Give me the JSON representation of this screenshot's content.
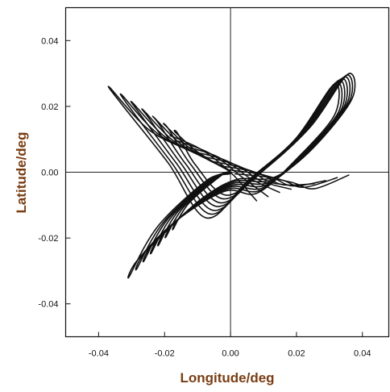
{
  "chart_data": {
    "type": "line",
    "title": "",
    "xlabel": "Longitude/deg",
    "ylabel": "Latitude/deg",
    "xlim": [
      -0.05,
      0.048
    ],
    "ylim": [
      -0.05,
      0.05
    ],
    "x_ticks": [
      -0.04,
      -0.02,
      0.0,
      0.02,
      0.04
    ],
    "y_ticks": [
      -0.04,
      -0.02,
      0.0,
      0.02,
      0.04
    ],
    "x_tick_labels": [
      "-0.04",
      "-0.02",
      "0.00",
      "0.02",
      "0.04"
    ],
    "y_tick_labels": [
      "-0.04",
      "-0.02",
      "0.00",
      "0.02",
      "0.04"
    ],
    "grid": false,
    "zero_lines": true,
    "line_color": "#111111",
    "series": [
      {
        "x": [
          0.0,
          -0.0099,
          -0.0245,
          -0.0367,
          -0.0325,
          -0.0189,
          -0.0073,
          0.0054,
          0.0196,
          0.0314,
          0.0316,
          0.0201,
          0.0082,
          -0.0018,
          -0.0169,
          -0.0283,
          -0.0307,
          -0.0221,
          -0.0071,
          0.0
        ],
        "y": [
          0.0,
          0.0054,
          0.0127,
          0.0258,
          0.02,
          0.0028,
          -0.0139,
          -0.0024,
          0.01,
          0.0267,
          0.0175,
          0.0041,
          -0.0063,
          -0.0058,
          -0.0151,
          -0.0268,
          -0.0317,
          -0.0165,
          -0.0024,
          0.0
        ]
      },
      {
        "x": [
          0.0,
          -0.0089,
          -0.0221,
          -0.033,
          -0.0298,
          -0.0178,
          -0.0062,
          0.0063,
          0.0204,
          0.0319,
          0.0327,
          0.0208,
          0.0091,
          -0.0012,
          -0.0153,
          -0.0262,
          -0.0284,
          -0.0205,
          -0.0063,
          0.0
        ],
        "y": [
          0.0,
          0.0049,
          0.0117,
          0.0235,
          0.0186,
          0.0028,
          -0.0127,
          -0.0018,
          0.0106,
          0.0272,
          0.0182,
          0.0046,
          -0.0055,
          -0.0052,
          -0.0138,
          -0.0247,
          -0.0293,
          -0.0154,
          -0.0021,
          0.0
        ]
      },
      {
        "x": [
          0.0,
          -0.0078,
          -0.0197,
          -0.0298,
          -0.0271,
          -0.0164,
          -0.0052,
          0.0072,
          0.0212,
          0.0326,
          0.0336,
          0.0216,
          0.0099,
          -0.0006,
          -0.0137,
          -0.0241,
          -0.0262,
          -0.019,
          -0.0055,
          0.0
        ],
        "y": [
          0.0,
          0.0044,
          0.0106,
          0.0212,
          0.0172,
          0.0027,
          -0.0116,
          -0.0012,
          0.0113,
          0.0278,
          0.019,
          0.0051,
          -0.0047,
          -0.0046,
          -0.0124,
          -0.0226,
          -0.0269,
          -0.0142,
          -0.0018,
          0.0
        ]
      },
      {
        "x": [
          0.0,
          -0.0068,
          -0.0174,
          -0.0265,
          -0.0243,
          -0.015,
          -0.0042,
          0.0081,
          0.022,
          0.0334,
          0.0344,
          0.0224,
          0.0108,
          0.0001,
          -0.0121,
          -0.022,
          -0.024,
          -0.0174,
          -0.0047,
          0.0
        ],
        "y": [
          0.0,
          0.0038,
          0.0096,
          0.0189,
          0.0158,
          0.0026,
          -0.0104,
          -0.0006,
          0.012,
          0.0283,
          0.0198,
          0.0056,
          -0.0039,
          -0.004,
          -0.0111,
          -0.0205,
          -0.0245,
          -0.013,
          -0.0015,
          0.0
        ]
      },
      {
        "x": [
          0.0,
          -0.0057,
          -0.015,
          -0.0232,
          -0.0215,
          -0.0136,
          -0.0031,
          0.009,
          0.0228,
          0.0342,
          0.0352,
          0.0232,
          0.0117,
          0.0007,
          -0.0105,
          -0.0199,
          -0.0218,
          -0.0158,
          -0.0039,
          0.0
        ],
        "y": [
          0.0,
          0.0033,
          0.0085,
          0.0166,
          0.0144,
          0.0025,
          -0.0093,
          0.0,
          0.0127,
          0.0288,
          0.0206,
          0.0061,
          -0.0031,
          -0.0034,
          -0.0097,
          -0.0184,
          -0.0221,
          -0.0118,
          -0.0012,
          0.0
        ]
      },
      {
        "x": [
          0.0,
          -0.0046,
          -0.0126,
          -0.0199,
          -0.0187,
          -0.0121,
          -0.0021,
          0.0099,
          0.0237,
          0.0349,
          0.036,
          0.024,
          0.0125,
          0.0013,
          -0.0089,
          -0.0178,
          -0.0196,
          -0.0142,
          -0.0031,
          0.0
        ],
        "y": [
          0.0,
          0.0028,
          0.0075,
          0.0143,
          0.013,
          0.0024,
          -0.0081,
          0.0006,
          0.0134,
          0.0293,
          0.0214,
          0.0066,
          -0.0023,
          -0.0028,
          -0.0084,
          -0.0163,
          -0.0197,
          -0.0106,
          -0.0009,
          0.0
        ]
      },
      {
        "x": [
          0.0,
          -0.0036,
          -0.0103,
          -0.0166,
          -0.0159,
          -0.0107,
          -0.0011,
          0.0108,
          0.0245,
          0.0356,
          0.0368,
          0.0248,
          0.0134,
          0.0019,
          -0.0073,
          -0.0157,
          -0.0174,
          -0.0126,
          -0.0023,
          0.0
        ],
        "y": [
          0.0,
          0.0022,
          0.0064,
          0.012,
          0.0116,
          0.0023,
          -0.007,
          0.0012,
          0.0141,
          0.0298,
          0.0222,
          0.0071,
          -0.0015,
          -0.0022,
          -0.007,
          -0.0142,
          -0.0173,
          -0.0094,
          -0.0006,
          0.0
        ]
      }
    ],
    "strand_series": [
      {
        "x": [
          -0.0185,
          -0.0105,
          -0.0045,
          0.001,
          0.008
        ],
        "y": [
          0.0112,
          0.0078,
          0.0038,
          -0.001,
          -0.0088
        ]
      },
      {
        "x": [
          -0.016,
          -0.0078,
          -0.002,
          0.0035,
          0.0115
        ],
        "y": [
          0.0095,
          0.0065,
          0.003,
          -0.0015,
          -0.0075
        ]
      },
      {
        "x": [
          -0.0135,
          -0.005,
          0.001,
          0.0065,
          0.015
        ],
        "y": [
          0.0078,
          0.0052,
          0.0018,
          -0.0022,
          -0.0062
        ]
      },
      {
        "x": [
          -0.011,
          -0.0025,
          0.004,
          0.0095,
          0.0185
        ],
        "y": [
          0.0062,
          0.004,
          0.0008,
          -0.0028,
          -0.0052
        ]
      },
      {
        "x": [
          -0.0085,
          0.0,
          0.007,
          0.0125,
          0.022
        ],
        "y": [
          0.0048,
          0.0028,
          -0.0002,
          -0.0032,
          -0.0042
        ]
      },
      {
        "x": [
          -0.006,
          0.0025,
          0.01,
          0.0158,
          0.0255
        ],
        "y": [
          0.0034,
          0.0016,
          -0.001,
          -0.0038,
          -0.0035
        ]
      },
      {
        "x": [
          -0.0035,
          0.005,
          0.013,
          0.019,
          0.029
        ],
        "y": [
          0.002,
          0.0006,
          -0.0018,
          -0.0042,
          -0.0025
        ]
      },
      {
        "x": [
          -0.0012,
          0.0078,
          0.016,
          0.0222,
          0.0325
        ],
        "y": [
          0.0008,
          -0.0004,
          -0.0025,
          -0.0046,
          -0.0016
        ]
      },
      {
        "x": [
          0.0012,
          0.0105,
          0.019,
          0.0255,
          0.036
        ],
        "y": [
          -0.0005,
          -0.0014,
          -0.0032,
          -0.005,
          -0.0008
        ]
      }
    ]
  }
}
